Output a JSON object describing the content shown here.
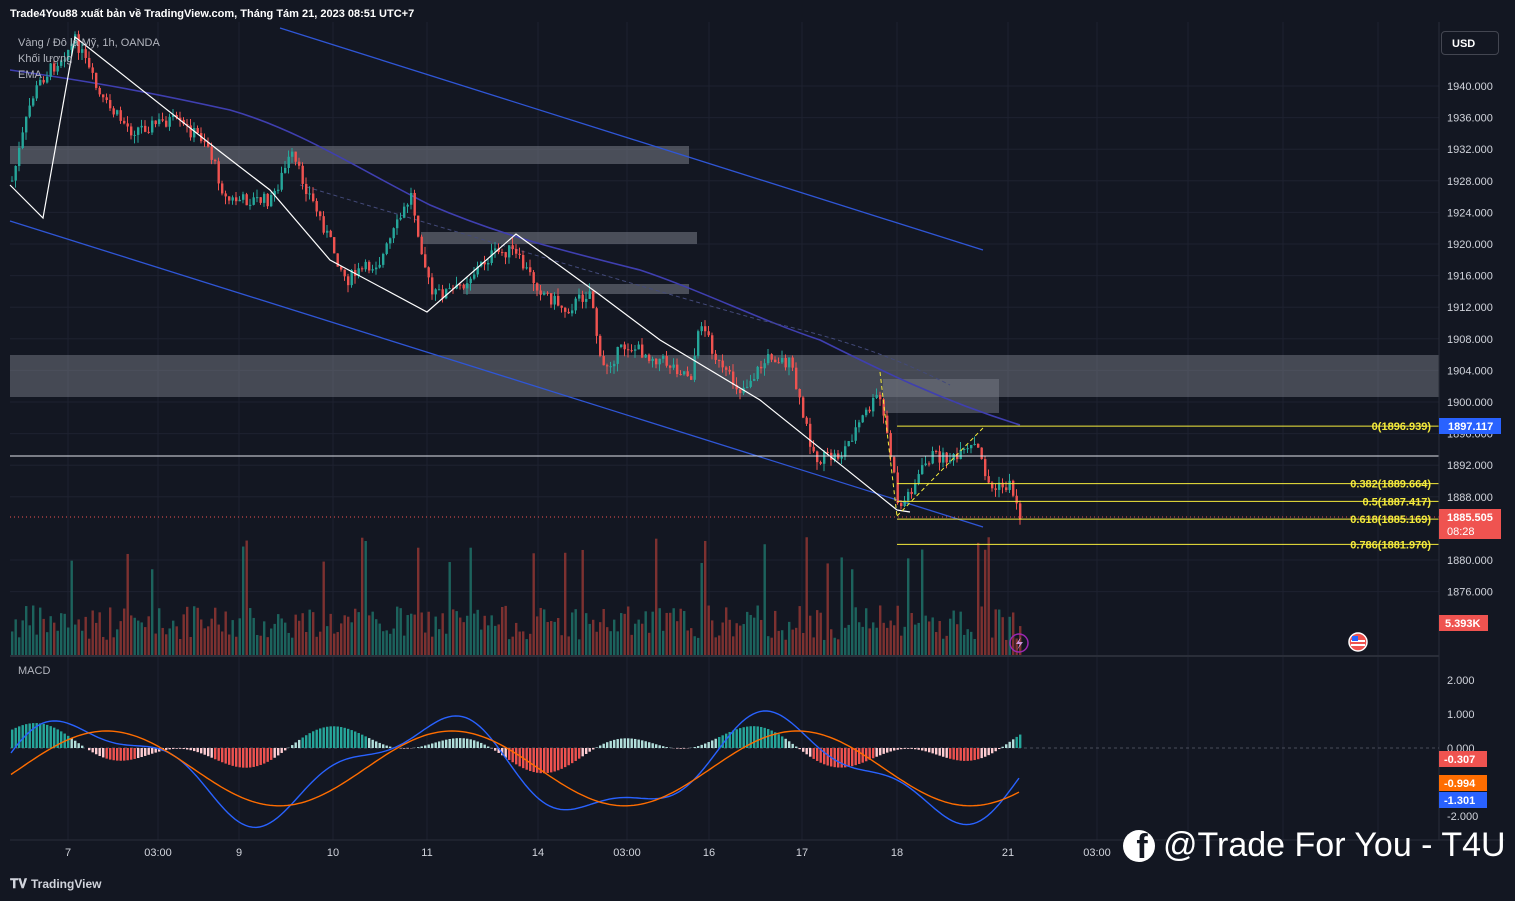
{
  "header": {
    "publisher_line": "Trade4You88 xuất bản về TradingView.com, Tháng Tám 21, 2023 08:51 UTC+7"
  },
  "legend": {
    "symbol": "Vàng / Đô la Mỹ, 1h, OANDA",
    "volume": "Khối lượng",
    "ema": "EMA"
  },
  "currency_button": "USD",
  "price_axis": {
    "ticks": [
      "1940.000",
      "1936.000",
      "1932.000",
      "1928.000",
      "1924.000",
      "1920.000",
      "1916.000",
      "1912.000",
      "1908.000",
      "1904.000",
      "1900.000",
      "1896.000",
      "1892.000",
      "1888.000",
      "1880.000",
      "1876.000"
    ],
    "labels": {
      "fib_top": "1897.117",
      "last_price": "1885.505",
      "countdown": "08:28",
      "volume": "5.393K"
    }
  },
  "fib_levels": [
    {
      "label": "0(1896.939)",
      "price": 1896.939
    },
    {
      "label": "0.382(1889.664)",
      "price": 1889.664
    },
    {
      "label": "0.5(1887.417)",
      "price": 1887.417
    },
    {
      "label": "0.618(1885.169)",
      "price": 1885.169
    },
    {
      "label": "0.786(1881.970)",
      "price": 1881.97
    }
  ],
  "time_axis": [
    "7",
    "03:00",
    "9",
    "10",
    "11",
    "14",
    "03:00",
    "16",
    "17",
    "18",
    "21",
    "03:00"
  ],
  "macd": {
    "title": "MACD",
    "ticks": [
      "2.000",
      "1.000",
      "0.000",
      "-2.000"
    ],
    "labels": {
      "histogram": "-0.307",
      "signal": "-0.994",
      "macd": "-1.301"
    }
  },
  "watermark": "@Trade For You - T4U",
  "brand": "TradingView",
  "colors": {
    "background": "#131722",
    "up": "#26a69a",
    "down": "#ef5350",
    "fib": "#f5eb3c",
    "ema": "#3f3fb0",
    "channel": "#2f56d6",
    "macd_line": "#2962ff",
    "signal_line": "#ff6d00"
  }
}
